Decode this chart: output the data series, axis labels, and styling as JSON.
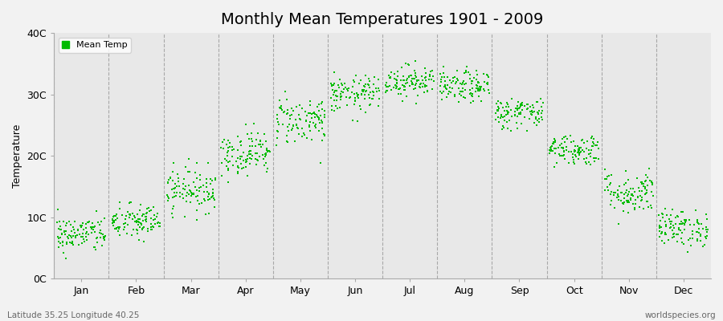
{
  "title": "Monthly Mean Temperatures 1901 - 2009",
  "ylabel": "Temperature",
  "xlabel_bottom_left": "Latitude 35.25 Longitude 40.25",
  "xlabel_bottom_right": "worldspecies.org",
  "background_color": "#f2f2f2",
  "plot_bg_color": "#e8e8e8",
  "point_color": "#00bb00",
  "ytick_labels": [
    "0C",
    "10C",
    "20C",
    "30C",
    "40C"
  ],
  "ytick_values": [
    0,
    10,
    20,
    30,
    40
  ],
  "months": [
    "Jan",
    "Feb",
    "Mar",
    "Apr",
    "May",
    "Jun",
    "Jul",
    "Aug",
    "Sep",
    "Oct",
    "Nov",
    "Dec"
  ],
  "month_means": [
    7.2,
    9.2,
    14.5,
    20.5,
    25.8,
    30.0,
    32.2,
    31.2,
    27.0,
    21.0,
    14.0,
    8.2
  ],
  "month_stds": [
    1.5,
    1.5,
    1.8,
    1.8,
    2.0,
    1.5,
    1.3,
    1.3,
    1.3,
    1.3,
    1.8,
    1.5
  ],
  "n_years": 109,
  "ylim": [
    0,
    40
  ],
  "legend_label": "Mean Temp",
  "title_fontsize": 14,
  "axis_label_fontsize": 9,
  "tick_fontsize": 9,
  "point_size": 4,
  "dashed_line_color": "#999999",
  "spine_color": "#aaaaaa"
}
